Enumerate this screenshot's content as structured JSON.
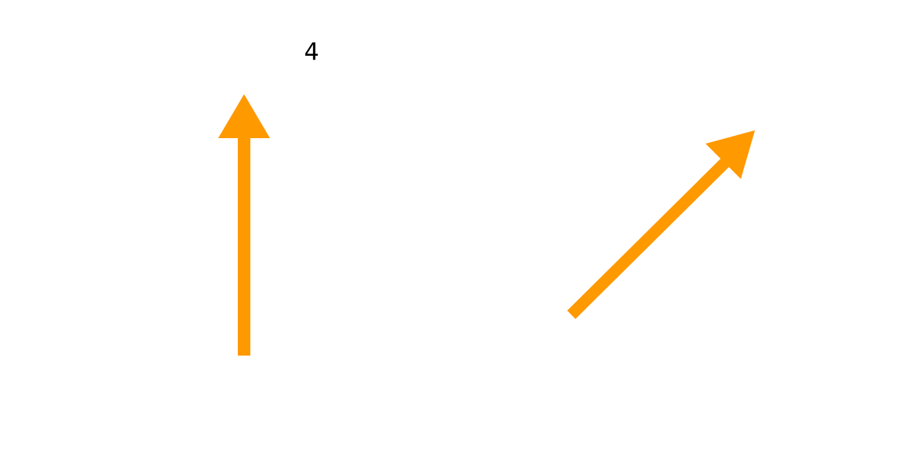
{
  "diagram": {
    "label": "4",
    "arrow_color": "#ff9900",
    "text_color": "#000000",
    "arrows": [
      {
        "name": "vertical-arrow",
        "direction": "up"
      },
      {
        "name": "diagonal-arrow",
        "direction": "up-right"
      }
    ]
  }
}
